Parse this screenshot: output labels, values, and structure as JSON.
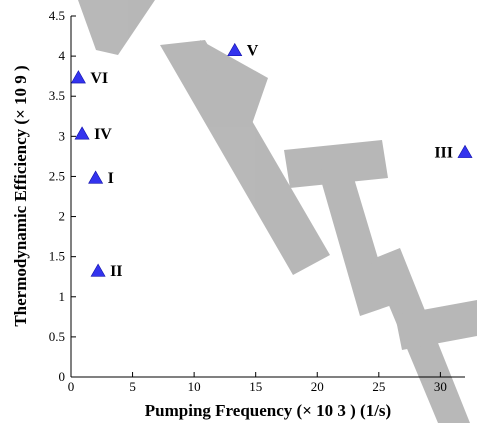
{
  "chart_data": {
    "type": "scatter",
    "title": "",
    "xlabel": "Pumping Frequency (× 10 3 ) (1/s)",
    "ylabel": "Thermodynamic Efficiency (× 10 9 )",
    "xlim": [
      0,
      32
    ],
    "ylim": [
      0,
      4.5
    ],
    "xticks": [
      0,
      5,
      10,
      15,
      20,
      25,
      30
    ],
    "yticks": [
      0,
      0.5,
      1,
      1.5,
      2,
      2.5,
      3,
      3.5,
      4,
      4.5
    ],
    "xtick_labels": [
      "0",
      "5",
      "10",
      "15",
      "20",
      "25",
      "30"
    ],
    "ytick_labels": [
      "0",
      "0.5",
      "1",
      "1.5",
      "2",
      "2.5",
      "3",
      "3.5",
      "4",
      "4.5"
    ],
    "grid": false,
    "marker_color": "#3333ee",
    "points": [
      {
        "label": "I",
        "x": 2.0,
        "y": 2.48
      },
      {
        "label": "II",
        "x": 2.2,
        "y": 1.32
      },
      {
        "label": "III",
        "x": 32.0,
        "y": 2.8
      },
      {
        "label": "IV",
        "x": 0.9,
        "y": 3.03
      },
      {
        "label": "V",
        "x": 13.3,
        "y": 4.07
      },
      {
        "label": "VI",
        "x": 0.6,
        "y": 3.73
      }
    ]
  }
}
